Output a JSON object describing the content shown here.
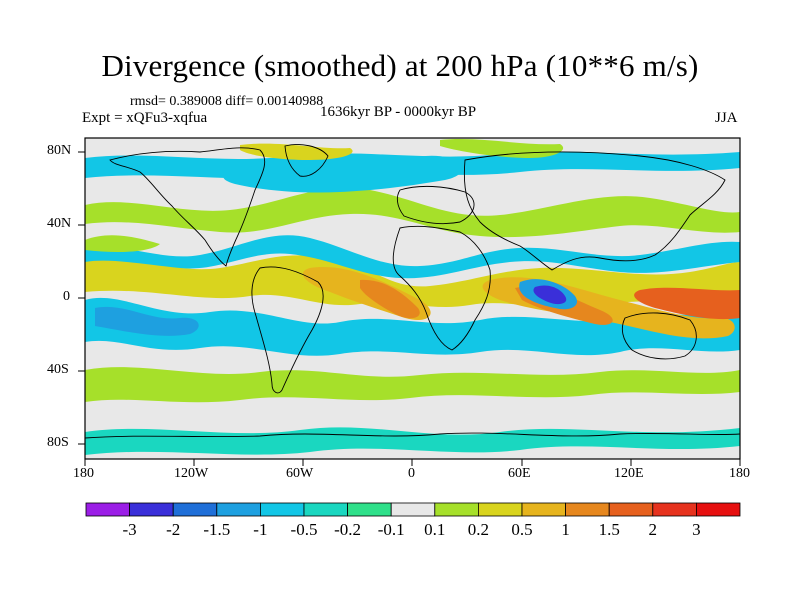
{
  "title": "Divergence (smoothed) at 200 hPa (10**6 m/s)",
  "stats": "rmsd= 0.389008 diff= 0.00140988",
  "experiment": "Expt = xQFu3-xqfua",
  "period": "1636kyr BP - 0000kyr BP",
  "season": "JJA",
  "lat_labels": [
    "80N",
    "40N",
    "0",
    "40S",
    "80S"
  ],
  "lon_labels": [
    "180",
    "120W",
    "60W",
    "0",
    "60E",
    "120E",
    "180"
  ],
  "colorbar": {
    "labels": [
      "-3",
      "-2",
      "-1.5",
      "-1",
      "-0.5",
      "-0.2",
      "-0.1",
      "0.1",
      "0.2",
      "0.5",
      "1",
      "1.5",
      "2",
      "3"
    ],
    "colors": [
      "#9b1ee6",
      "#3a2fd9",
      "#1f6fd8",
      "#1ea0e0",
      "#12c6e6",
      "#1ad7c0",
      "#2fe08a",
      "#e8e8e8",
      "#a6e02a",
      "#d9d41e",
      "#e6b41e",
      "#e6871e",
      "#e6601e",
      "#e6321e",
      "#e60f0f"
    ]
  }
}
